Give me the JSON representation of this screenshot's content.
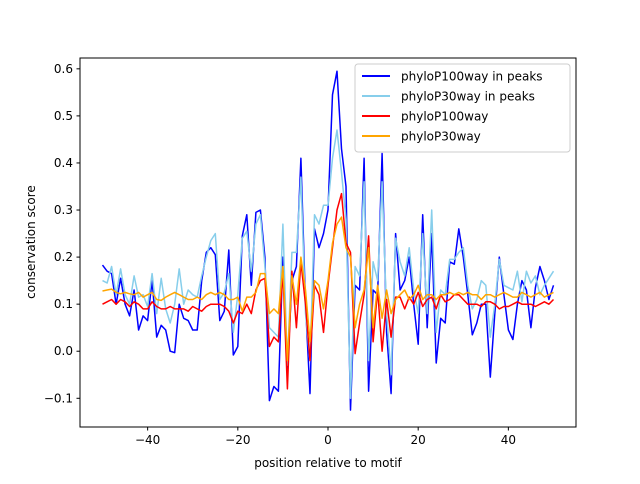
{
  "chart_data": {
    "type": "line",
    "title": "",
    "xlabel": "position relative to motif",
    "ylabel": "conservation score",
    "xlim": [
      -55,
      55
    ],
    "ylim": [
      -0.161,
      0.623
    ],
    "xticks": [
      -40,
      -20,
      0,
      20,
      40
    ],
    "xtick_labels": [
      "−40",
      "−20",
      "0",
      "20",
      "40"
    ],
    "yticks": [
      -0.1,
      0.0,
      0.1,
      0.2,
      0.3,
      0.4,
      0.5,
      0.6
    ],
    "ytick_labels": [
      "−0.1",
      "0.0",
      "0.1",
      "0.2",
      "0.3",
      "0.4",
      "0.5",
      "0.6"
    ],
    "grid": false,
    "legend_position": "top-right",
    "x_start": -50,
    "x_end": 50,
    "series": [
      {
        "name": "phyloP100way in peaks",
        "color": "#0000ff",
        "values": [
          0.183,
          0.17,
          0.165,
          0.1,
          0.155,
          0.1,
          0.075,
          0.13,
          0.045,
          0.075,
          0.065,
          0.15,
          0.03,
          0.055,
          0.045,
          0.0,
          -0.003,
          0.1,
          0.07,
          0.065,
          0.045,
          0.045,
          0.15,
          0.21,
          0.22,
          0.205,
          0.065,
          0.085,
          0.215,
          -0.008,
          0.01,
          0.245,
          0.29,
          0.14,
          0.295,
          0.3,
          0.2,
          -0.105,
          -0.075,
          -0.085,
          0.2,
          -0.04,
          0.15,
          0.18,
          0.41,
          0.1,
          -0.09,
          0.26,
          0.22,
          0.25,
          0.3,
          0.545,
          0.595,
          0.43,
          0.35,
          -0.125,
          0.14,
          0.13,
          0.41,
          -0.085,
          0.13,
          0.12,
          0.42,
          0.04,
          -0.09,
          0.25,
          0.13,
          0.15,
          0.2,
          0.1,
          0.015,
          0.29,
          0.05,
          0.25,
          -0.025,
          0.07,
          0.06,
          0.19,
          0.185,
          0.26,
          0.2,
          0.12,
          0.035,
          0.06,
          0.1,
          0.1,
          -0.055,
          0.08,
          0.2,
          0.12,
          0.045,
          0.025,
          0.1,
          0.15,
          0.13,
          0.05,
          0.135,
          0.18,
          0.15,
          0.11,
          0.14
        ]
      },
      {
        "name": "phyloP30way in peaks",
        "color": "#87ceeb",
        "values": [
          0.15,
          0.145,
          0.18,
          0.12,
          0.175,
          0.12,
          0.1,
          0.16,
          0.115,
          0.12,
          0.095,
          0.165,
          0.08,
          0.155,
          0.09,
          0.06,
          0.1,
          0.175,
          0.1,
          0.13,
          0.12,
          0.115,
          0.16,
          0.2,
          0.235,
          0.25,
          0.11,
          0.125,
          0.165,
          0.04,
          0.12,
          0.24,
          0.255,
          0.17,
          0.27,
          0.29,
          0.18,
          0.05,
          0.04,
          0.03,
          0.27,
          -0.03,
          0.21,
          0.21,
          0.37,
          0.08,
          -0.02,
          0.29,
          0.27,
          0.31,
          0.31,
          0.41,
          0.47,
          0.38,
          0.28,
          -0.1,
          0.18,
          0.16,
          0.36,
          -0.02,
          0.19,
          0.15,
          0.36,
          0.08,
          -0.05,
          0.24,
          0.19,
          0.16,
          0.22,
          0.13,
          0.08,
          0.25,
          0.08,
          0.3,
          0.04,
          0.13,
          0.12,
          0.195,
          0.195,
          0.21,
          0.22,
          0.14,
          0.09,
          0.11,
          0.15,
          0.14,
          0.03,
          0.1,
          0.195,
          0.14,
          0.135,
          0.13,
          0.17,
          0.105,
          0.17,
          0.145,
          0.16,
          0.12,
          0.14,
          0.155,
          0.17
        ]
      },
      {
        "name": "phyloP100way",
        "color": "#ff0000",
        "values": [
          0.1,
          0.105,
          0.11,
          0.1,
          0.11,
          0.105,
          0.095,
          0.105,
          0.1,
          0.09,
          0.09,
          0.105,
          0.095,
          0.09,
          0.09,
          0.095,
          0.09,
          0.09,
          0.09,
          0.085,
          0.095,
          0.09,
          0.085,
          0.095,
          0.1,
          0.1,
          0.1,
          0.095,
          0.085,
          0.06,
          0.085,
          0.08,
          0.1,
          0.08,
          0.13,
          0.15,
          0.155,
          0.01,
          0.03,
          0.02,
          0.17,
          -0.08,
          0.17,
          0.05,
          0.19,
          0.1,
          -0.02,
          0.14,
          0.12,
          0.04,
          0.14,
          0.22,
          0.3,
          0.335,
          0.23,
          0.21,
          -0.005,
          0.06,
          0.12,
          0.245,
          0.02,
          0.13,
          0.0,
          0.11,
          0.03,
          0.115,
          0.115,
          0.09,
          0.115,
          0.1,
          0.125,
          0.095,
          0.11,
          0.115,
          0.09,
          0.12,
          0.105,
          0.11,
          0.12,
          0.12,
          0.11,
          0.1,
          0.1,
          0.1,
          0.095,
          0.105,
          0.105,
          0.1,
          0.09,
          0.095,
          0.095,
          0.1,
          0.105,
          0.1,
          0.1,
          0.1,
          0.095,
          0.1,
          0.105,
          0.1,
          0.11
        ]
      },
      {
        "name": "phyloP30way",
        "color": "#ffa500",
        "values": [
          0.128,
          0.13,
          0.132,
          0.125,
          0.122,
          0.125,
          0.122,
          0.12,
          0.125,
          0.115,
          0.12,
          0.125,
          0.11,
          0.108,
          0.115,
          0.12,
          0.125,
          0.12,
          0.115,
          0.11,
          0.11,
          0.115,
          0.11,
          0.12,
          0.125,
          0.12,
          0.125,
          0.12,
          0.11,
          0.11,
          0.115,
          0.085,
          0.115,
          0.115,
          0.125,
          0.165,
          0.165,
          0.08,
          0.09,
          0.08,
          0.18,
          -0.02,
          0.16,
          0.1,
          0.2,
          0.13,
          0.02,
          0.15,
          0.14,
          0.09,
          0.15,
          0.23,
          0.27,
          0.285,
          0.22,
          0.2,
          0.05,
          0.1,
          0.13,
          0.22,
          0.05,
          0.14,
          0.07,
          0.13,
          0.08,
          0.11,
          0.12,
          0.13,
          0.11,
          0.12,
          0.14,
          0.11,
          0.12,
          0.12,
          0.11,
          0.12,
          0.12,
          0.125,
          0.12,
          0.125,
          0.12,
          0.125,
          0.12,
          0.12,
          0.11,
          0.12,
          0.12,
          0.115,
          0.12,
          0.125,
          0.12,
          0.115,
          0.115,
          0.125,
          0.12,
          0.115,
          0.12,
          0.125,
          0.115,
          0.12,
          0.125
        ]
      }
    ]
  }
}
